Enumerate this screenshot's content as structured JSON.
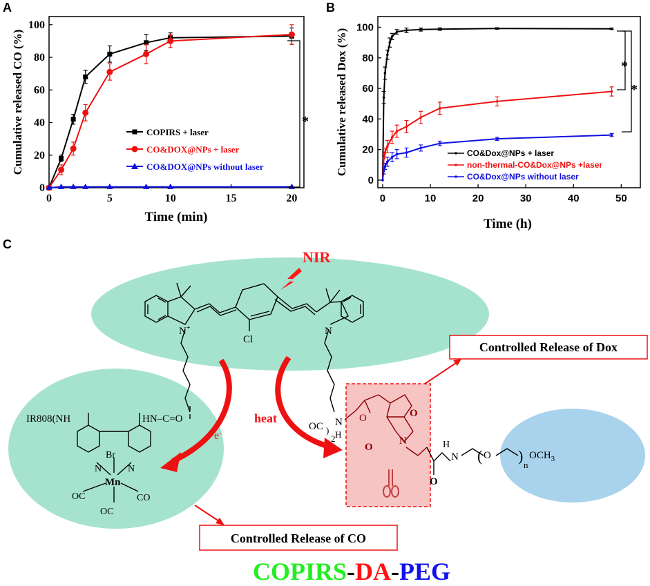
{
  "panels": {
    "a": "A",
    "b": "B",
    "c": "C"
  },
  "chart_data": [
    {
      "type": "line",
      "panel": "A",
      "xlabel": "Time (min)",
      "ylabel": "Cumulative released CO (%)",
      "xlim": [
        0,
        21
      ],
      "ylim": [
        0,
        105
      ],
      "xticks": [
        0,
        5,
        10,
        15,
        20
      ],
      "yticks": [
        0,
        20,
        40,
        60,
        80,
        100
      ],
      "legend_position": "center-right",
      "annotations": [
        "*"
      ],
      "series": [
        {
          "name": "COPIRS + laser",
          "color": "#000000",
          "marker": "square",
          "x": [
            0,
            1,
            2,
            3,
            5,
            8,
            10,
            20
          ],
          "y": [
            0,
            18,
            42,
            68,
            82,
            89,
            92,
            93
          ],
          "err": [
            0,
            2,
            3,
            4,
            5,
            5,
            3,
            5
          ]
        },
        {
          "name": "CO&DOX@NPs + laser",
          "color": "#ee1111",
          "marker": "circle",
          "x": [
            0,
            1,
            2,
            3,
            5,
            8,
            10,
            20
          ],
          "y": [
            0,
            11,
            24,
            46,
            71,
            82,
            90,
            94
          ],
          "err": [
            0,
            3,
            4,
            5,
            5,
            6,
            4,
            6
          ]
        },
        {
          "name": "CO&DOX@NPs without laser",
          "color": "#1010e0",
          "marker": "triangle",
          "x": [
            0,
            1,
            2,
            3,
            5,
            8,
            10,
            20
          ],
          "y": [
            0,
            0.5,
            0.5,
            0.5,
            0.5,
            0.5,
            0.5,
            0.5
          ],
          "err": [
            0,
            0,
            0,
            0,
            0,
            0,
            0,
            0
          ]
        }
      ]
    },
    {
      "type": "line",
      "panel": "B",
      "xlabel": "Time (h)",
      "ylabel": "Cumulative released Dox (%)",
      "xlim": [
        -1,
        54
      ],
      "ylim": [
        -5,
        107
      ],
      "xticks": [
        0,
        10,
        20,
        30,
        40,
        50
      ],
      "yticks": [
        0,
        20,
        40,
        60,
        80,
        100
      ],
      "legend_position": "lower-right",
      "annotations": [
        "*",
        "*"
      ],
      "series": [
        {
          "name": "CO&Dox@NPs + laser",
          "color": "#000000",
          "x": [
            0,
            0.25,
            0.5,
            1,
            1.5,
            2,
            3,
            5,
            8,
            12,
            24,
            48
          ],
          "y": [
            0,
            54,
            70,
            82,
            90,
            94,
            97,
            98,
            98.5,
            98.8,
            99.2,
            99
          ],
          "err": [
            0,
            4,
            4,
            3,
            3,
            2,
            1.5,
            1.5,
            1,
            0.8,
            0.5,
            0.5
          ]
        },
        {
          "name": "non-thermal-CO&Dox@NPs +laser",
          "color": "#ee1111",
          "x": [
            0,
            0.25,
            0.5,
            1,
            2,
            3,
            5,
            8,
            12,
            24,
            48
          ],
          "y": [
            0,
            14,
            18,
            22,
            28,
            32,
            35,
            41,
            47,
            51.5,
            58
          ],
          "err": [
            0,
            3,
            3,
            4,
            4,
            4,
            4,
            4,
            4,
            3,
            3
          ]
        },
        {
          "name": "CO&Dox@NPs without laser",
          "color": "#1010e0",
          "x": [
            0,
            0.25,
            0.5,
            1,
            2,
            3,
            5,
            8,
            12,
            24,
            48
          ],
          "y": [
            0,
            6,
            9,
            12,
            15,
            17,
            18,
            21,
            24,
            27,
            29.5
          ],
          "err": [
            0,
            2,
            2,
            3,
            3,
            3,
            3,
            2,
            1.5,
            1,
            1
          ]
        }
      ]
    }
  ],
  "scheme": {
    "nir": "NIR",
    "cl": "Cl",
    "n_plus": "N",
    "plus": "+",
    "n": "N",
    "e_minus": "e",
    "heat": "heat",
    "ir808": "IR808",
    "nh": "NH",
    "hn_co": "HN–C=O",
    "br": "Br",
    "mn": "Mn",
    "oc_left": "OC",
    "co_right": "CO",
    "oc_bottom": "OC",
    "oc_link": "OC",
    "sub2": "2",
    "n_link": "N",
    "h_link": "H",
    "o_bridge": "O",
    "o_imide_top": "O",
    "n_imide": "N",
    "o_imide_bottom": "O",
    "o_amide": "O",
    "h_peg": "H",
    "n_peg": "N",
    "o_peg": "O",
    "sub_n": "n",
    "och3": "OCH",
    "sub3": "3",
    "controlled_release_dox": "Controlled Release of Dox",
    "controlled_release_co": "Controlled Release of CO",
    "footer_part1": "COPIRS",
    "footer_dash1": "-",
    "footer_part2": "DA",
    "footer_dash2": "-",
    "footer_part3": "PEG",
    "colors": {
      "green_ellipse": "#a6e3cf",
      "blue_ellipse": "#a9d3ec",
      "pink_box": "#f7c4c4",
      "red": "#ff1a1a",
      "footer_green": "#22ee22",
      "footer_red": "#ff1111",
      "footer_blue": "#1111ee"
    }
  }
}
